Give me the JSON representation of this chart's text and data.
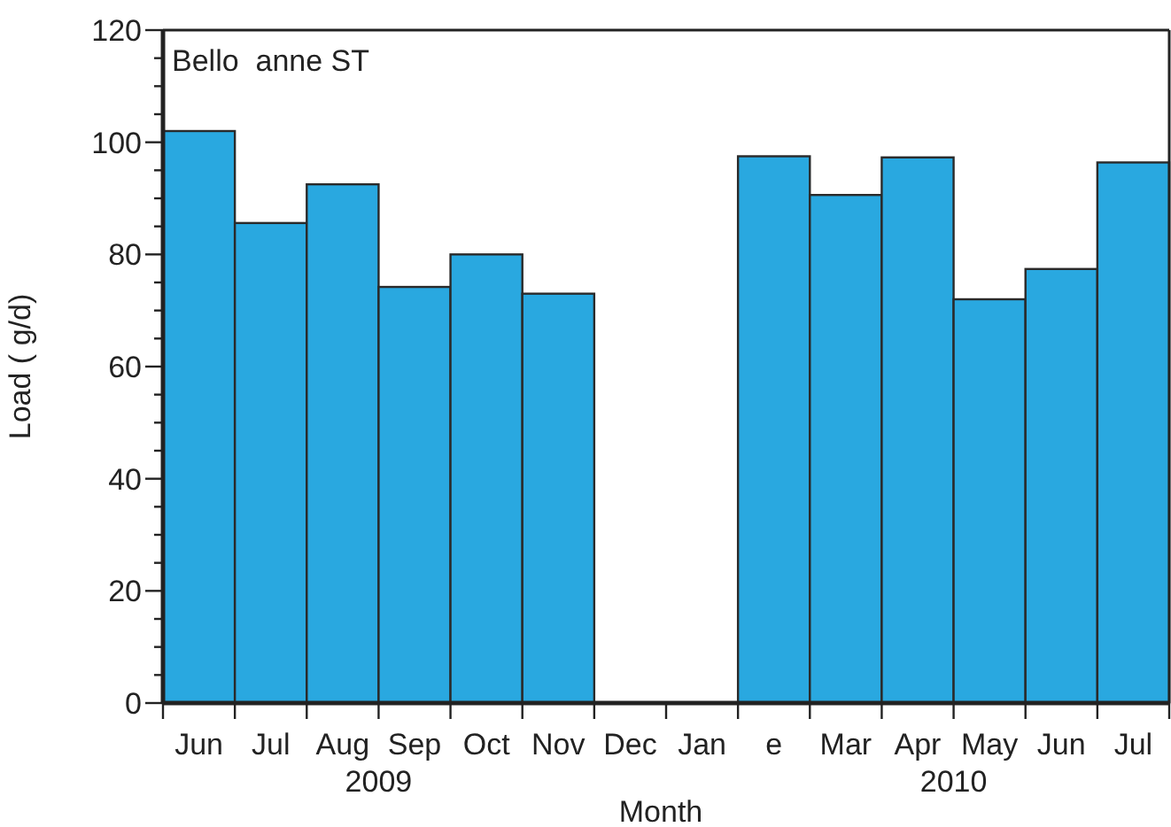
{
  "chart_data": {
    "type": "bar",
    "title": "Bello  anne ST",
    "xlabel": "Month",
    "ylabel": "Load ( g/d)",
    "categories": [
      "Jun",
      "Jul",
      "Aug",
      "Sep",
      "Oct",
      "Nov",
      "Dec",
      "Jan",
      "e",
      "Mar",
      "Apr",
      "May",
      "Jun",
      "Jul"
    ],
    "values": [
      102,
      85.6,
      92.5,
      74.2,
      80,
      73,
      null,
      null,
      97.5,
      90.6,
      97.3,
      72,
      77.4,
      96.4
    ],
    "color": "#29a8e0",
    "ylim": [
      0,
      120
    ],
    "yticks": [
      0,
      {
        "value": 5,
        "label": null
      },
      {
        "value": 10,
        "label": null
      },
      {
        "value": 15,
        "label": null
      },
      20,
      {
        "value": 25,
        "label": null
      },
      {
        "value": 30,
        "label": null
      },
      {
        "value": 35,
        "label": null
      },
      40,
      {
        "value": 45,
        "label": null
      },
      {
        "value": 50,
        "label": null
      },
      {
        "value": 55,
        "label": null
      },
      60,
      {
        "value": 65,
        "label": null
      },
      {
        "value": 70,
        "label": null
      },
      {
        "value": 75,
        "label": null
      },
      80,
      {
        "value": 85,
        "label": null
      },
      {
        "value": 90,
        "label": null
      },
      {
        "value": 95,
        "label": null
      },
      100,
      {
        "value": 105,
        "label": null
      },
      {
        "value": 110,
        "label": null
      },
      {
        "value": 115,
        "label": null
      },
      120
    ],
    "annotations": [
      "2009",
      "2010"
    ]
  }
}
